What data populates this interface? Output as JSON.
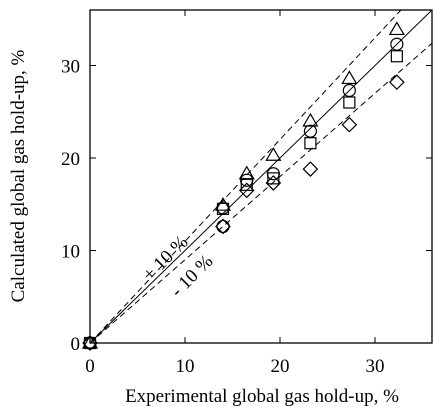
{
  "chart_data": {
    "type": "scatter",
    "title": "",
    "xlabel": "Experimental global gas hold-up, %",
    "ylabel": "Calculated global gas hold-up, %",
    "xlim": [
      0,
      36
    ],
    "ylim": [
      0,
      36
    ],
    "xticks": [
      0,
      10,
      20,
      30
    ],
    "yticks": [
      0,
      10,
      20,
      30
    ],
    "x_tick_labels": [
      "0",
      "10",
      "20",
      "30"
    ],
    "y_tick_labels": [
      "0",
      "10",
      "20",
      "30"
    ],
    "grid": false,
    "series": [
      {
        "marker": "triangle",
        "x": [
          0,
          14.0,
          16.5,
          19.3,
          23.2,
          27.3,
          32.3
        ],
        "y": [
          0,
          14.9,
          18.3,
          20.3,
          24.0,
          28.6,
          33.9
        ]
      },
      {
        "marker": "circle",
        "x": [
          0,
          14.0,
          14.0,
          16.5,
          19.3,
          23.2,
          27.3,
          32.3
        ],
        "y": [
          0,
          14.6,
          12.6,
          17.6,
          18.3,
          22.9,
          27.3,
          32.3
        ]
      },
      {
        "marker": "square",
        "x": [
          0,
          14.0,
          16.5,
          19.3,
          23.2,
          27.3,
          32.3
        ],
        "y": [
          0,
          14.5,
          17.1,
          17.8,
          21.6,
          26.0,
          31.0
        ]
      },
      {
        "marker": "diamond",
        "x": [
          0,
          14.0,
          16.5,
          19.3,
          23.2,
          27.3,
          32.3
        ],
        "y": [
          0,
          12.6,
          16.5,
          17.3,
          18.8,
          23.6,
          28.2
        ]
      }
    ],
    "reference_lines": [
      {
        "style": "solid",
        "slope": 1.0
      },
      {
        "style": "dashed",
        "slope": 1.1
      },
      {
        "style": "dashed",
        "slope": 0.9
      }
    ],
    "annotations": [
      {
        "text": "+ 10 %",
        "near": "upper dashed line"
      },
      {
        "text": "- 10 %",
        "near": "lower dashed line"
      }
    ]
  }
}
